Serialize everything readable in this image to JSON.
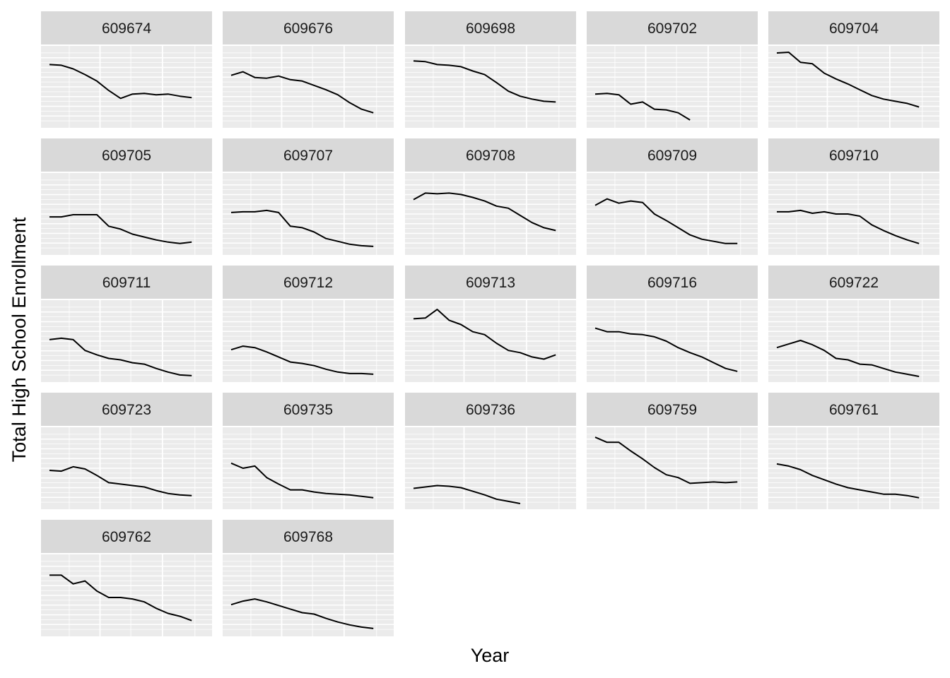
{
  "chart_data": {
    "type": "line",
    "facet": "small-multiples",
    "xlabel": "Year",
    "ylabel": "Total High School Enrollment",
    "x_tick_labels_shown": false,
    "y_tick_labels_shown": false,
    "xlim": [
      0,
      13
    ],
    "ylim": [
      0,
      1
    ],
    "line_color": "#000000",
    "panel_background": "#ebebeb",
    "strip_background": "#d9d9d9",
    "grid_color": "#ffffff",
    "panels": [
      {
        "id": "609674",
        "x": [
          0,
          1,
          2,
          3,
          4,
          5,
          6,
          7,
          8,
          9,
          10,
          11,
          12
        ],
        "values": [
          0.82,
          0.81,
          0.76,
          0.68,
          0.59,
          0.46,
          0.35,
          0.41,
          0.42,
          0.4,
          0.41,
          0.38,
          0.36
        ]
      },
      {
        "id": "609676",
        "x": [
          0,
          1,
          2,
          3,
          4,
          5,
          6,
          7,
          8,
          9,
          10,
          11,
          12
        ],
        "values": [
          0.67,
          0.72,
          0.64,
          0.63,
          0.66,
          0.61,
          0.59,
          0.53,
          0.47,
          0.4,
          0.29,
          0.2,
          0.15
        ]
      },
      {
        "id": "609698",
        "x": [
          0,
          1,
          2,
          3,
          4,
          5,
          6,
          7,
          8,
          9,
          10,
          11,
          12
        ],
        "values": [
          0.87,
          0.86,
          0.82,
          0.81,
          0.79,
          0.73,
          0.68,
          0.57,
          0.45,
          0.38,
          0.34,
          0.31,
          0.3
        ]
      },
      {
        "id": "609702",
        "x": [
          0,
          1,
          2,
          3,
          4,
          5,
          6,
          7,
          8
        ],
        "values": [
          0.41,
          0.42,
          0.4,
          0.27,
          0.3,
          0.2,
          0.19,
          0.15,
          0.05
        ]
      },
      {
        "id": "609704",
        "x": [
          0,
          1,
          2,
          3,
          4,
          5,
          6,
          7,
          8,
          9,
          10,
          11,
          12
        ],
        "values": [
          0.98,
          0.99,
          0.85,
          0.83,
          0.7,
          0.62,
          0.55,
          0.47,
          0.39,
          0.34,
          0.31,
          0.28,
          0.23
        ]
      },
      {
        "id": "609705",
        "x": [
          0,
          1,
          2,
          3,
          4,
          5,
          6,
          7,
          8,
          9,
          10,
          11,
          12
        ],
        "values": [
          0.47,
          0.47,
          0.5,
          0.5,
          0.5,
          0.34,
          0.3,
          0.23,
          0.19,
          0.15,
          0.12,
          0.1,
          0.12
        ]
      },
      {
        "id": "609707",
        "x": [
          0,
          1,
          2,
          3,
          4,
          5,
          6,
          7,
          8,
          9,
          10,
          11,
          12
        ],
        "values": [
          0.53,
          0.54,
          0.54,
          0.56,
          0.53,
          0.34,
          0.32,
          0.26,
          0.17,
          0.13,
          0.09,
          0.07,
          0.06
        ]
      },
      {
        "id": "609708",
        "x": [
          0,
          1,
          2,
          3,
          4,
          5,
          6,
          7,
          8,
          9,
          10,
          11,
          12
        ],
        "values": [
          0.71,
          0.8,
          0.79,
          0.8,
          0.78,
          0.74,
          0.69,
          0.62,
          0.59,
          0.49,
          0.39,
          0.32,
          0.28
        ]
      },
      {
        "id": "609709",
        "x": [
          0,
          1,
          2,
          3,
          4,
          5,
          6,
          7,
          8,
          9,
          10,
          11,
          12
        ],
        "values": [
          0.63,
          0.72,
          0.66,
          0.69,
          0.67,
          0.51,
          0.42,
          0.32,
          0.22,
          0.16,
          0.13,
          0.1,
          0.1
        ]
      },
      {
        "id": "609710",
        "x": [
          0,
          1,
          2,
          3,
          4,
          5,
          6,
          7,
          8,
          9,
          10,
          11,
          12
        ],
        "values": [
          0.54,
          0.54,
          0.56,
          0.52,
          0.54,
          0.51,
          0.51,
          0.48,
          0.36,
          0.28,
          0.21,
          0.15,
          0.1
        ]
      },
      {
        "id": "609711",
        "x": [
          0,
          1,
          2,
          3,
          4,
          5,
          6,
          7,
          8,
          9,
          10,
          11,
          12
        ],
        "values": [
          0.53,
          0.55,
          0.53,
          0.38,
          0.32,
          0.27,
          0.25,
          0.21,
          0.19,
          0.13,
          0.08,
          0.04,
          0.03
        ]
      },
      {
        "id": "609712",
        "x": [
          0,
          1,
          2,
          3,
          4,
          5,
          6,
          7,
          8,
          9,
          10,
          11,
          12
        ],
        "values": [
          0.39,
          0.44,
          0.42,
          0.36,
          0.29,
          0.22,
          0.2,
          0.17,
          0.12,
          0.08,
          0.06,
          0.06,
          0.05
        ]
      },
      {
        "id": "609713",
        "x": [
          0,
          1,
          2,
          3,
          4,
          5,
          6,
          7,
          8,
          9,
          10,
          11,
          12
        ],
        "values": [
          0.82,
          0.83,
          0.95,
          0.8,
          0.74,
          0.64,
          0.6,
          0.48,
          0.38,
          0.35,
          0.29,
          0.26,
          0.32
        ]
      },
      {
        "id": "609716",
        "x": [
          0,
          1,
          2,
          3,
          4,
          5,
          6,
          7,
          8,
          9,
          10,
          11,
          12
        ],
        "values": [
          0.69,
          0.64,
          0.64,
          0.61,
          0.6,
          0.57,
          0.51,
          0.42,
          0.35,
          0.29,
          0.21,
          0.13,
          0.09
        ]
      },
      {
        "id": "609722",
        "x": [
          0,
          1,
          2,
          3,
          4,
          5,
          6,
          7,
          8,
          9,
          10,
          11,
          12
        ],
        "values": [
          0.42,
          0.47,
          0.52,
          0.46,
          0.38,
          0.27,
          0.25,
          0.19,
          0.18,
          0.13,
          0.08,
          0.05,
          0.02
        ]
      },
      {
        "id": "609723",
        "x": [
          0,
          1,
          2,
          3,
          4,
          5,
          6,
          7,
          8,
          9,
          10,
          11,
          12
        ],
        "values": [
          0.48,
          0.47,
          0.53,
          0.5,
          0.41,
          0.31,
          0.29,
          0.27,
          0.25,
          0.2,
          0.16,
          0.14,
          0.13
        ]
      },
      {
        "id": "609735",
        "x": [
          0,
          1,
          2,
          3,
          4,
          5,
          6,
          7,
          8,
          9,
          10,
          11,
          12
        ],
        "values": [
          0.58,
          0.51,
          0.54,
          0.38,
          0.29,
          0.21,
          0.21,
          0.18,
          0.16,
          0.15,
          0.14,
          0.12,
          0.1
        ]
      },
      {
        "id": "609736",
        "x": [
          0,
          1,
          2,
          3,
          4,
          5,
          6,
          7,
          8,
          9
        ],
        "values": [
          0.23,
          0.25,
          0.27,
          0.26,
          0.24,
          0.19,
          0.14,
          0.08,
          0.05,
          0.02
        ]
      },
      {
        "id": "609759",
        "x": [
          0,
          1,
          2,
          3,
          4,
          5,
          6,
          7,
          8,
          9,
          10,
          11,
          12
        ],
        "values": [
          0.94,
          0.87,
          0.87,
          0.75,
          0.64,
          0.52,
          0.42,
          0.38,
          0.3,
          0.31,
          0.32,
          0.31,
          0.32
        ]
      },
      {
        "id": "609761",
        "x": [
          0,
          1,
          2,
          3,
          4,
          5,
          6,
          7,
          8,
          9,
          10,
          11,
          12
        ],
        "values": [
          0.57,
          0.54,
          0.49,
          0.41,
          0.35,
          0.29,
          0.24,
          0.21,
          0.18,
          0.15,
          0.15,
          0.13,
          0.1
        ]
      },
      {
        "id": "609762",
        "x": [
          0,
          1,
          2,
          3,
          4,
          5,
          6,
          7,
          8,
          9,
          10,
          11,
          12
        ],
        "values": [
          0.79,
          0.79,
          0.67,
          0.71,
          0.57,
          0.48,
          0.48,
          0.46,
          0.42,
          0.33,
          0.26,
          0.22,
          0.16
        ]
      },
      {
        "id": "609768",
        "x": [
          0,
          1,
          2,
          3,
          4,
          5,
          6,
          7,
          8,
          9,
          10,
          11,
          12
        ],
        "values": [
          0.38,
          0.43,
          0.46,
          0.42,
          0.37,
          0.32,
          0.27,
          0.25,
          0.19,
          0.14,
          0.1,
          0.07,
          0.05
        ]
      }
    ]
  }
}
